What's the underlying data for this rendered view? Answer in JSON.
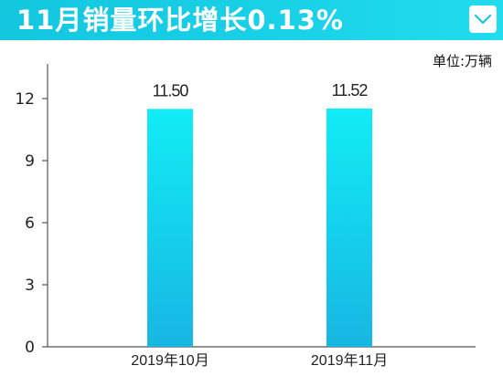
{
  "header": {
    "title": "11月销量环比增长0.13%",
    "menu_icon": "chevron-down-icon"
  },
  "unit_label": "单位:万辆",
  "colors": {
    "header": "#19d0e6",
    "bar_top": "#12ecf6",
    "bar_bottom": "#18b6e2",
    "axis": "#555555"
  },
  "chart_data": {
    "type": "bar",
    "categories": [
      "2019年10月",
      "2019年11月"
    ],
    "values": [
      11.5,
      11.52
    ],
    "value_labels": [
      "11.50",
      "11.52"
    ],
    "y_ticks": [
      "0",
      "3",
      "6",
      "9",
      "12"
    ],
    "ylim": [
      0,
      12
    ],
    "grid": false
  }
}
